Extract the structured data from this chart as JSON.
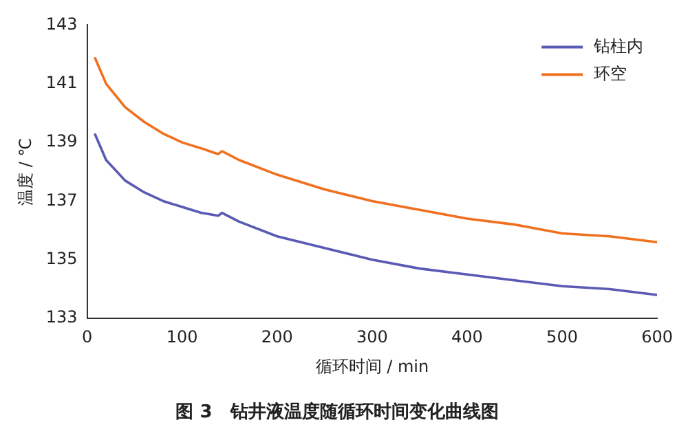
{
  "chart_data": {
    "type": "line",
    "title": "图 3　钻井液温度随循环时间变化曲线图",
    "xlabel": "循环时间 / min",
    "ylabel": "温度 / ℃",
    "xlim": [
      0,
      600
    ],
    "xticks": [
      0,
      100,
      200,
      300,
      400,
      500,
      600
    ],
    "ylim": [
      133,
      143
    ],
    "yticks": [
      133,
      135,
      137,
      139,
      141,
      143
    ],
    "x": [
      8,
      20,
      40,
      60,
      80,
      100,
      120,
      138,
      142,
      160,
      200,
      250,
      300,
      350,
      400,
      450,
      500,
      550,
      600
    ],
    "series": [
      {
        "name": "钻柱内",
        "color": "#5a5ab4",
        "values": [
          139.3,
          138.4,
          137.7,
          137.3,
          137.0,
          136.8,
          136.6,
          136.5,
          136.6,
          136.3,
          135.8,
          135.4,
          135.0,
          134.7,
          134.5,
          134.3,
          134.1,
          134.0,
          133.8
        ]
      },
      {
        "name": "环空",
        "color": "#f07020",
        "values": [
          141.9,
          141.0,
          140.2,
          139.7,
          139.3,
          139.0,
          138.8,
          138.6,
          138.7,
          138.4,
          137.9,
          137.4,
          137.0,
          136.7,
          136.4,
          136.2,
          135.9,
          135.8,
          135.6
        ]
      }
    ],
    "legend": "top right",
    "grid": false,
    "marker": "none",
    "line_style": "solid"
  }
}
